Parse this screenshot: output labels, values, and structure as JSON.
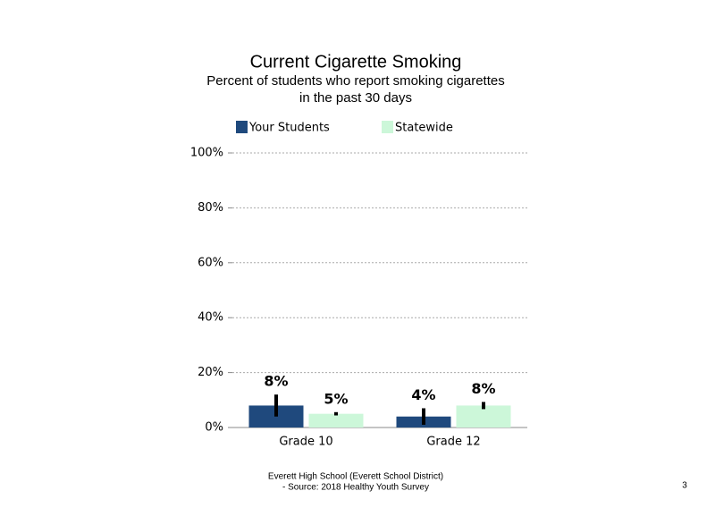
{
  "chart_data": {
    "type": "bar",
    "title": "Current Cigarette Smoking",
    "subtitle": [
      "Percent of students who report smoking cigarettes",
      "in the past 30 days"
    ],
    "categories": [
      "Grade 10",
      "Grade 12"
    ],
    "series": [
      {
        "name": "Your Students",
        "color": "#1f497d",
        "values": [
          8,
          4
        ],
        "value_labels": [
          "8%",
          "4%"
        ],
        "error": [
          4,
          3
        ]
      },
      {
        "name": "Statewide",
        "color": "#ccf7d9",
        "values": [
          5,
          8
        ],
        "value_labels": [
          "5%",
          "8%"
        ],
        "error": [
          0.6,
          1.3
        ]
      }
    ],
    "ylim": [
      0,
      100
    ],
    "yticks": [
      {
        "value": 0,
        "label": "0%"
      },
      {
        "value": 20,
        "label": "20%"
      },
      {
        "value": 40,
        "label": "40%"
      },
      {
        "value": 60,
        "label": "60%"
      },
      {
        "value": 80,
        "label": "80%"
      },
      {
        "value": 100,
        "label": "100%"
      }
    ],
    "grid": true,
    "footer": [
      "Everett High School (Everett School District)",
      "- Source: 2018 Healthy Youth Survey"
    ],
    "page_number": "3"
  }
}
